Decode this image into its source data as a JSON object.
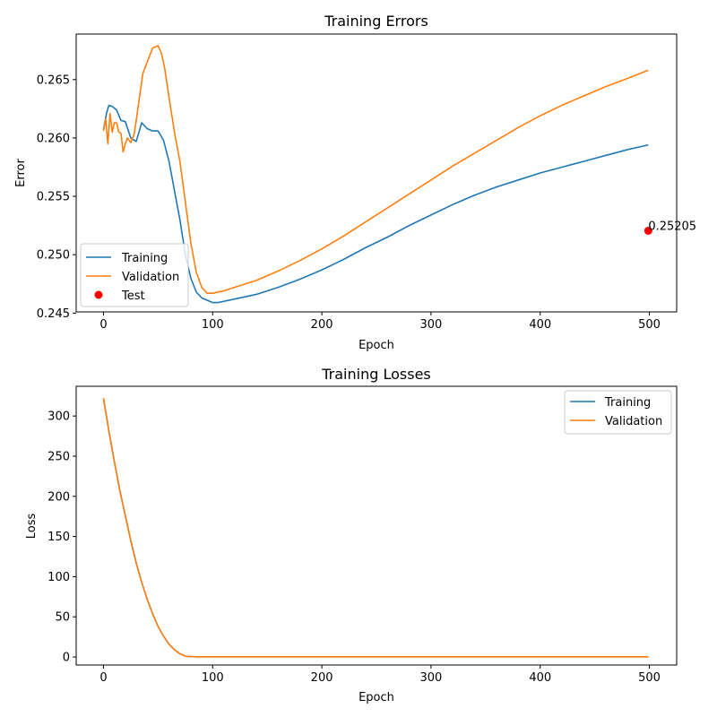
{
  "colors": {
    "training": "#1f77b4",
    "validation": "#ff7f0e",
    "test": "#ff0000"
  },
  "chart_data": [
    {
      "type": "line",
      "title": "Training Errors",
      "xlabel": "Epoch",
      "ylabel": "Error",
      "xlim": [
        -25,
        525
      ],
      "ylim": [
        0.2451,
        0.2689
      ],
      "xticks": [
        0,
        100,
        200,
        300,
        400,
        500
      ],
      "xtick_labels": [
        "0",
        "100",
        "200",
        "300",
        "400",
        "500"
      ],
      "yticks": [
        0.245,
        0.25,
        0.255,
        0.26,
        0.265
      ],
      "ytick_labels": [
        "0.245",
        "0.250",
        "0.255",
        "0.260",
        "0.265"
      ],
      "grid": false,
      "legend": "lower-left",
      "series": [
        {
          "name": "Training",
          "color_key": "training",
          "x": [
            0,
            3,
            5,
            8,
            12,
            16,
            20,
            25,
            30,
            35,
            40,
            45,
            50,
            55,
            60,
            65,
            70,
            75,
            80,
            85,
            90,
            95,
            100,
            105,
            110,
            120,
            140,
            160,
            180,
            200,
            220,
            240,
            260,
            280,
            300,
            320,
            340,
            360,
            380,
            400,
            420,
            440,
            460,
            480,
            499
          ],
          "y": [
            0.2607,
            0.2622,
            0.2628,
            0.2627,
            0.2624,
            0.2615,
            0.2614,
            0.26,
            0.2597,
            0.2613,
            0.2608,
            0.2606,
            0.2606,
            0.2598,
            0.258,
            0.2555,
            0.253,
            0.25,
            0.248,
            0.2468,
            0.2463,
            0.2461,
            0.2459,
            0.2459,
            0.246,
            0.2462,
            0.2466,
            0.2472,
            0.2479,
            0.2487,
            0.2496,
            0.2506,
            0.2515,
            0.2525,
            0.2534,
            0.2543,
            0.2551,
            0.2558,
            0.2564,
            0.257,
            0.2575,
            0.258,
            0.2585,
            0.259,
            0.2594
          ]
        },
        {
          "name": "Validation",
          "color_key": "validation",
          "x": [
            0,
            2,
            4,
            6,
            8,
            10,
            12,
            14,
            16,
            18,
            20,
            22,
            25,
            28,
            30,
            33,
            36,
            40,
            45,
            50,
            53,
            56,
            60,
            65,
            70,
            75,
            80,
            85,
            90,
            95,
            100,
            110,
            120,
            140,
            160,
            180,
            200,
            220,
            240,
            260,
            280,
            300,
            320,
            340,
            360,
            380,
            400,
            420,
            440,
            460,
            480,
            499
          ],
          "y": [
            0.2606,
            0.2616,
            0.2595,
            0.2621,
            0.2605,
            0.2613,
            0.2613,
            0.2605,
            0.2604,
            0.2588,
            0.2595,
            0.26,
            0.2596,
            0.2603,
            0.2615,
            0.2635,
            0.2655,
            0.2665,
            0.2677,
            0.2679,
            0.2673,
            0.266,
            0.2635,
            0.2605,
            0.258,
            0.2545,
            0.251,
            0.2485,
            0.2472,
            0.2467,
            0.2467,
            0.2469,
            0.2472,
            0.2478,
            0.2486,
            0.2495,
            0.2505,
            0.2516,
            0.2528,
            0.254,
            0.2552,
            0.2564,
            0.2576,
            0.2587,
            0.2598,
            0.2609,
            0.2619,
            0.2628,
            0.2636,
            0.2644,
            0.2651,
            0.2658
          ]
        }
      ],
      "points": [
        {
          "name": "Test",
          "color_key": "test",
          "x": 499,
          "y": 0.25205,
          "label": "0.25205"
        }
      ],
      "legend_entries": [
        "Training",
        "Validation",
        "Test"
      ]
    },
    {
      "type": "line",
      "title": "Training Losses",
      "xlabel": "Epoch",
      "ylabel": "Loss",
      "xlim": [
        -25,
        525
      ],
      "ylim": [
        -10,
        337
      ],
      "xticks": [
        0,
        100,
        200,
        300,
        400,
        500
      ],
      "xtick_labels": [
        "0",
        "100",
        "200",
        "300",
        "400",
        "500"
      ],
      "yticks": [
        0,
        50,
        100,
        150,
        200,
        250,
        300
      ],
      "ytick_labels": [
        "0",
        "50",
        "100",
        "150",
        "200",
        "250",
        "300"
      ],
      "grid": false,
      "legend": "top-right",
      "series": [
        {
          "name": "Training",
          "color_key": "training",
          "x": [
            0,
            5,
            10,
            15,
            20,
            25,
            30,
            35,
            40,
            45,
            50,
            55,
            60,
            65,
            70,
            75,
            80,
            85,
            100,
            200,
            300,
            400,
            499
          ],
          "y": [
            322,
            281,
            243,
            207,
            176,
            145,
            117,
            93,
            72,
            54,
            38,
            26,
            16,
            9,
            4,
            1,
            0.5,
            0.3,
            0.3,
            0.3,
            0.3,
            0.3,
            0.3
          ]
        },
        {
          "name": "Validation",
          "color_key": "validation",
          "x": [
            0,
            5,
            10,
            15,
            20,
            25,
            30,
            35,
            40,
            45,
            50,
            55,
            60,
            65,
            70,
            75,
            80,
            85,
            100,
            200,
            300,
            400,
            499
          ],
          "y": [
            322,
            281,
            243,
            207,
            176,
            145,
            117,
            93,
            72,
            54,
            38,
            26,
            16,
            9,
            4,
            1,
            0.5,
            0.3,
            0.3,
            0.3,
            0.3,
            0.3,
            0.3
          ]
        }
      ],
      "legend_entries": [
        "Training",
        "Validation"
      ]
    }
  ]
}
